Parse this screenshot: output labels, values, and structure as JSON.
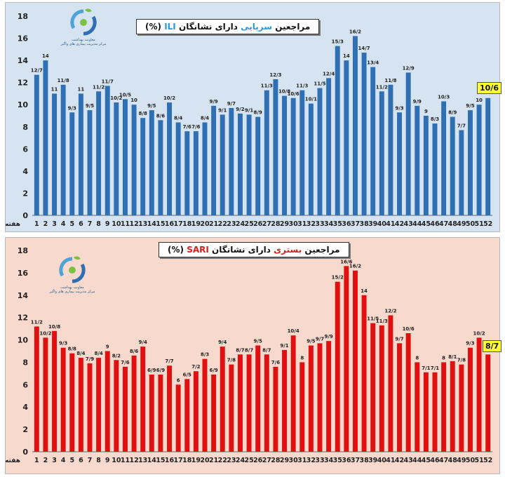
{
  "chart_data": [
    {
      "type": "bar",
      "title_prefix": "مراجعین",
      "title_accent": "سرپایی",
      "title_middle": "دارای نشانگان",
      "title_abbr": "ILI",
      "title_suffix": "(%)",
      "xlabel": "هفته",
      "ylim": [
        0,
        18
      ],
      "yticks": [
        0,
        2,
        4,
        6,
        8,
        10,
        12,
        14,
        16,
        18
      ],
      "categories": [
        1,
        2,
        3,
        4,
        5,
        6,
        7,
        8,
        9,
        10,
        11,
        12,
        13,
        14,
        15,
        16,
        17,
        18,
        19,
        20,
        21,
        22,
        23,
        24,
        25,
        26,
        27,
        28,
        29,
        30,
        31,
        32,
        33,
        34,
        35,
        36,
        37,
        38,
        39,
        40,
        41,
        42,
        43,
        44,
        45,
        46,
        47,
        48,
        49,
        50,
        51,
        52
      ],
      "values": [
        12.7,
        14,
        11,
        11.8,
        9.3,
        11,
        9.5,
        11.2,
        11.7,
        10.2,
        10.5,
        10,
        8.8,
        9.5,
        8.6,
        10.2,
        8.4,
        7.6,
        7.6,
        8.4,
        9.9,
        9.1,
        9.7,
        9.2,
        9.1,
        8.9,
        11.3,
        12.3,
        10.8,
        10.6,
        11.3,
        10.1,
        11.5,
        12.4,
        15.3,
        14,
        16.2,
        14.7,
        13.4,
        11.2,
        11.8,
        9.3,
        12.9,
        9.9,
        9,
        8.3,
        10.3,
        8.9,
        7.7,
        9.5,
        10,
        10.6
      ],
      "labels": [
        "12/7",
        "14",
        "11",
        "11/8",
        "9/3",
        "11",
        "9/5",
        "11/2",
        "11/7",
        "10/2",
        "10/5",
        "10",
        "8/8",
        "9/5",
        "8/6",
        "10/2",
        "8/4",
        "7/6",
        "7/6",
        "8/4",
        "9/9",
        "9/1",
        "9/7",
        "9/2",
        "9/1",
        "8/9",
        "11/3",
        "12/3",
        "10/8",
        "10/6",
        "11/3",
        "10/1",
        "11/5",
        "12/4",
        "15/3",
        "14",
        "16/2",
        "14/7",
        "13/4",
        "11/2",
        "11/8",
        "9/3",
        "12/9",
        "9/9",
        "9",
        "8/3",
        "10/3",
        "8/9",
        "7/7",
        "9/5",
        "10",
        ""
      ],
      "highlight_label": "10/6",
      "bar_color": "#2f6fb3",
      "logo_line1": "معاونت بهداشت",
      "logo_line2": "مرکز مدیریت بیماری های واگیر"
    },
    {
      "type": "bar",
      "title_prefix": "مراجعین",
      "title_accent": "بستری",
      "title_middle": "دارای نشانگان",
      "title_abbr": "SARI",
      "title_suffix": "(%)",
      "xlabel": "هفته",
      "ylim": [
        0,
        18
      ],
      "yticks": [
        0,
        2,
        4,
        6,
        8,
        10,
        12,
        14,
        16,
        18
      ],
      "categories": [
        1,
        2,
        3,
        4,
        5,
        6,
        7,
        8,
        9,
        10,
        11,
        12,
        13,
        14,
        15,
        16,
        17,
        18,
        19,
        20,
        21,
        22,
        23,
        24,
        25,
        26,
        27,
        28,
        29,
        30,
        31,
        32,
        33,
        34,
        35,
        36,
        37,
        38,
        39,
        40,
        41,
        42,
        43,
        44,
        45,
        46,
        47,
        48,
        49,
        50,
        51,
        52
      ],
      "values": [
        11.2,
        10.2,
        10.8,
        9.3,
        8.8,
        8.4,
        7.9,
        8.4,
        9,
        8.2,
        7.6,
        8.6,
        9.4,
        6.9,
        6.9,
        7.7,
        6,
        6.5,
        7.2,
        8.3,
        6.9,
        9.4,
        7.8,
        8.7,
        8.7,
        9.5,
        8.7,
        7.6,
        9.1,
        10.4,
        8,
        9.5,
        9.7,
        9.9,
        15.2,
        16.6,
        16.2,
        14,
        11.5,
        11.3,
        12.2,
        9.7,
        10.6,
        8,
        7.1,
        7.1,
        8,
        8.1,
        7.8,
        9.3,
        10.2,
        8.7
      ],
      "labels": [
        "11/2",
        "10/2",
        "10/8",
        "9/3",
        "8/8",
        "8/4",
        "7/9",
        "8/4",
        "9",
        "8/2",
        "7/6",
        "8/6",
        "9/4",
        "6/9",
        "6/9",
        "7/7",
        "6",
        "6/5",
        "7/2",
        "8/3",
        "6/9",
        "9/4",
        "7/8",
        "8/7",
        "8/7",
        "9/5",
        "8/7",
        "7/6",
        "9/1",
        "10/4",
        "8",
        "9/5",
        "9/7",
        "9/9",
        "15/2",
        "16/6",
        "16/2",
        "14",
        "11/5",
        "11/3",
        "12/2",
        "9/7",
        "10/6",
        "8",
        "7/1",
        "7/1",
        "8",
        "8/1",
        "7/8",
        "9/3",
        "10/2",
        ""
      ],
      "highlight_label": "8/7",
      "bar_color": "#e01010",
      "logo_line1": "معاونت بهداشت",
      "logo_line2": "مرکز مدیریت بیماری های واگیر"
    }
  ]
}
